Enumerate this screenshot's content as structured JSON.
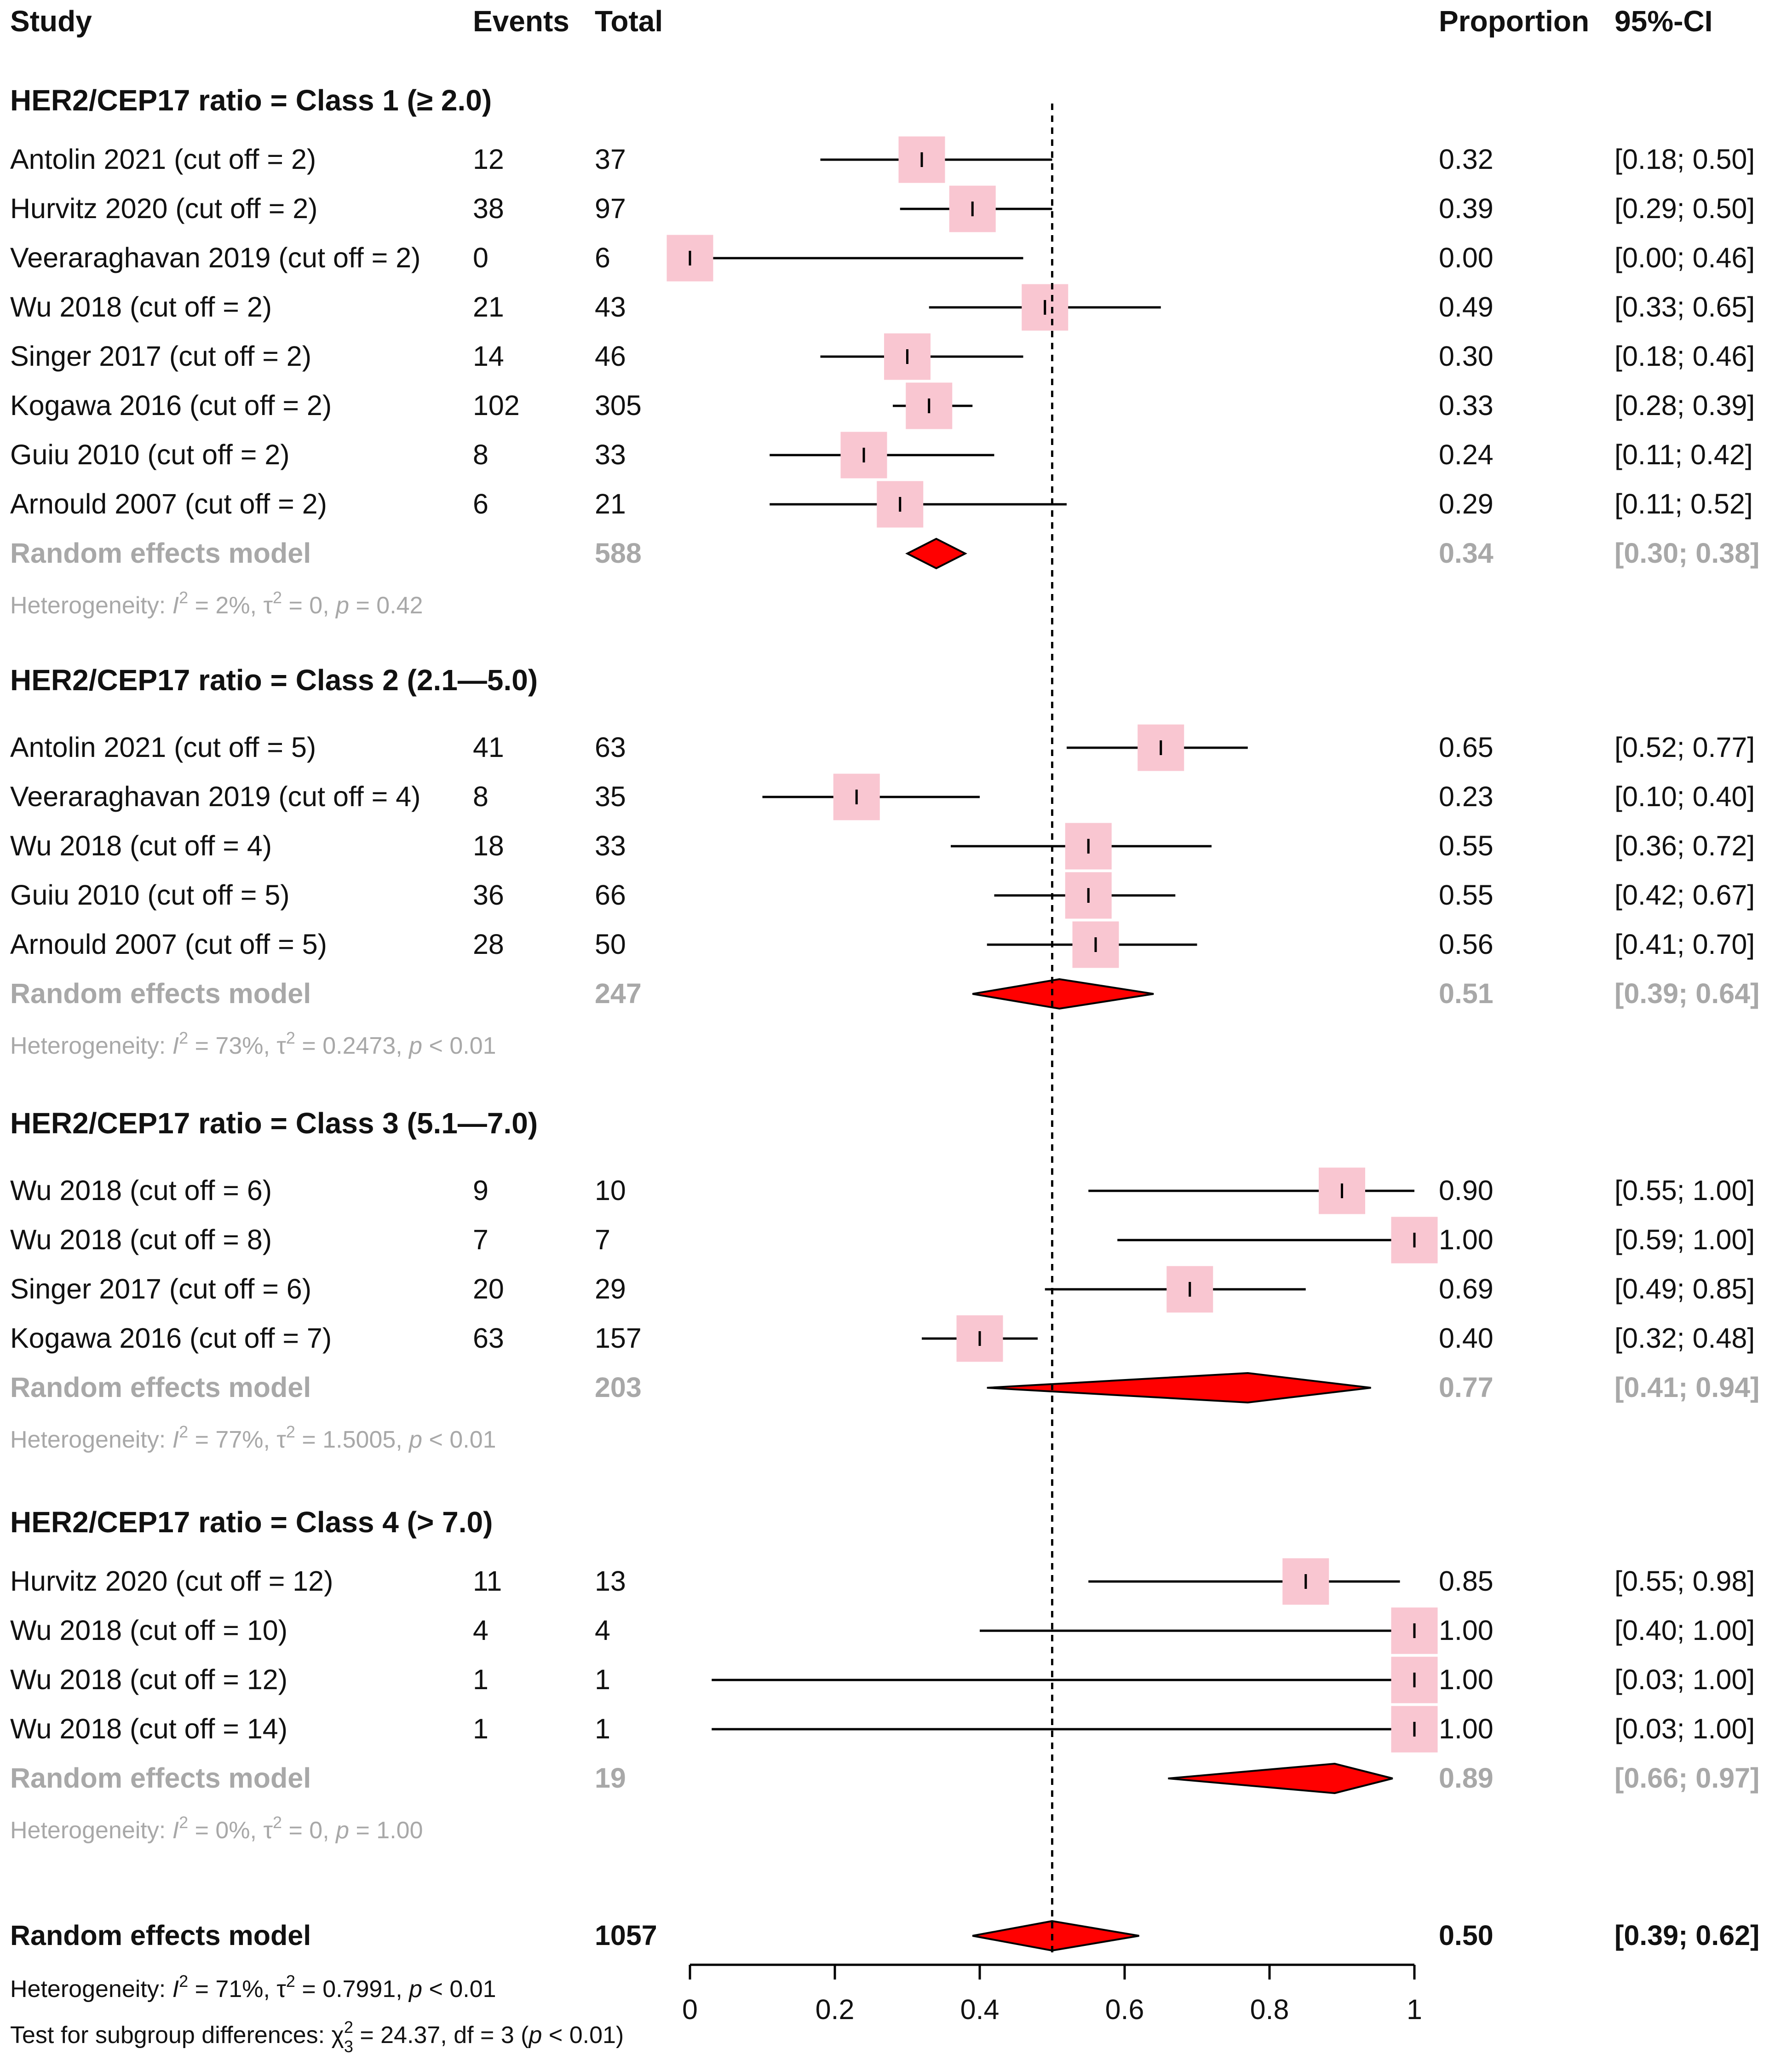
{
  "chart_data": {
    "type": "forest",
    "title": "",
    "xlim": [
      0,
      1
    ],
    "reference_line": 0.5,
    "x_ticks": [
      "0",
      "0.2",
      "0.4",
      "0.6",
      "0.8",
      "1"
    ],
    "x_tick_values": [
      0,
      0.2,
      0.4,
      0.6,
      0.8,
      1
    ],
    "headers": {
      "study": "Study",
      "events": "Events",
      "total": "Total",
      "proportion": "Proportion",
      "ci": "95%-CI"
    },
    "colors": {
      "box": "#f9c6d1",
      "diamond": "#ff0000",
      "grey": "#a8a8a8",
      "line": "#000000"
    },
    "groups": [
      {
        "label": "HER2/CEP17 ratio = Class 1 (≥ 2.0)",
        "studies": [
          {
            "study": "Antolin 2021 (cut off = 2)",
            "events": "12",
            "total": "37",
            "prop": 0.32,
            "lo": 0.18,
            "hi": 0.5,
            "prop_text": "0.32",
            "ci_text": "[0.18; 0.50]"
          },
          {
            "study": "Hurvitz 2020 (cut off = 2)",
            "events": "38",
            "total": "97",
            "prop": 0.39,
            "lo": 0.29,
            "hi": 0.5,
            "prop_text": "0.39",
            "ci_text": "[0.29; 0.50]"
          },
          {
            "study": "Veeraraghavan 2019 (cut off = 2)",
            "events": "0",
            "total": "6",
            "prop": 0.0,
            "lo": 0.0,
            "hi": 0.46,
            "prop_text": "0.00",
            "ci_text": "[0.00; 0.46]"
          },
          {
            "study": "Wu 2018 (cut off = 2)",
            "events": "21",
            "total": "43",
            "prop": 0.49,
            "lo": 0.33,
            "hi": 0.65,
            "prop_text": "0.49",
            "ci_text": "[0.33; 0.65]"
          },
          {
            "study": "Singer 2017 (cut off = 2)",
            "events": "14",
            "total": "46",
            "prop": 0.3,
            "lo": 0.18,
            "hi": 0.46,
            "prop_text": "0.30",
            "ci_text": "[0.18; 0.46]"
          },
          {
            "study": "Kogawa 2016 (cut off = 2)",
            "events": "102",
            "total": "305",
            "prop": 0.33,
            "lo": 0.28,
            "hi": 0.39,
            "prop_text": "0.33",
            "ci_text": "[0.28; 0.39]"
          },
          {
            "study": "Guiu 2010 (cut off = 2)",
            "events": "8",
            "total": "33",
            "prop": 0.24,
            "lo": 0.11,
            "hi": 0.42,
            "prop_text": "0.24",
            "ci_text": "[0.11; 0.42]"
          },
          {
            "study": "Arnould 2007 (cut off = 2)",
            "events": "6",
            "total": "21",
            "prop": 0.29,
            "lo": 0.11,
            "hi": 0.52,
            "prop_text": "0.29",
            "ci_text": "[0.11; 0.52]"
          }
        ],
        "model": {
          "label": "Random effects model",
          "total": "588",
          "est": 0.34,
          "lo": 0.3,
          "hi": 0.38,
          "prop_text": "0.34",
          "ci_text": "[0.30; 0.38]"
        },
        "heterogeneity": {
          "prefix": "Heterogeneity: ",
          "I2": "2%",
          "tau2": "0",
          "p": "= 0.42"
        }
      },
      {
        "label": "HER2/CEP17 ratio = Class 2 (2.1—5.0)",
        "studies": [
          {
            "study": "Antolin 2021 (cut off = 5)",
            "events": "41",
            "total": "63",
            "prop": 0.65,
            "lo": 0.52,
            "hi": 0.77,
            "prop_text": "0.65",
            "ci_text": "[0.52; 0.77]"
          },
          {
            "study": "Veeraraghavan 2019 (cut off = 4)",
            "events": "8",
            "total": "35",
            "prop": 0.23,
            "lo": 0.1,
            "hi": 0.4,
            "prop_text": "0.23",
            "ci_text": "[0.10; 0.40]"
          },
          {
            "study": "Wu 2018 (cut off = 4)",
            "events": "18",
            "total": "33",
            "prop": 0.55,
            "lo": 0.36,
            "hi": 0.72,
            "prop_text": "0.55",
            "ci_text": "[0.36; 0.72]"
          },
          {
            "study": "Guiu 2010 (cut off = 5)",
            "events": "36",
            "total": "66",
            "prop": 0.55,
            "lo": 0.42,
            "hi": 0.67,
            "prop_text": "0.55",
            "ci_text": "[0.42; 0.67]"
          },
          {
            "study": "Arnould 2007 (cut off = 5)",
            "events": "28",
            "total": "50",
            "prop": 0.56,
            "lo": 0.41,
            "hi": 0.7,
            "prop_text": "0.56",
            "ci_text": "[0.41; 0.70]"
          }
        ],
        "model": {
          "label": "Random effects model",
          "total": "247",
          "est": 0.51,
          "lo": 0.39,
          "hi": 0.64,
          "prop_text": "0.51",
          "ci_text": "[0.39; 0.64]"
        },
        "heterogeneity": {
          "prefix": "Heterogeneity: ",
          "I2": "73%",
          "tau2": "0.2473",
          "p": "< 0.01"
        }
      },
      {
        "label": "HER2/CEP17 ratio = Class 3 (5.1—7.0)",
        "studies": [
          {
            "study": "Wu 2018 (cut off = 6)",
            "events": "9",
            "total": "10",
            "prop": 0.9,
            "lo": 0.55,
            "hi": 1.0,
            "prop_text": "0.90",
            "ci_text": "[0.55; 1.00]"
          },
          {
            "study": "Wu 2018 (cut off = 8)",
            "events": "7",
            "total": "7",
            "prop": 1.0,
            "lo": 0.59,
            "hi": 1.0,
            "prop_text": "1.00",
            "ci_text": "[0.59; 1.00]"
          },
          {
            "study": "Singer 2017 (cut off = 6)",
            "events": "20",
            "total": "29",
            "prop": 0.69,
            "lo": 0.49,
            "hi": 0.85,
            "prop_text": "0.69",
            "ci_text": "[0.49; 0.85]"
          },
          {
            "study": "Kogawa 2016 (cut off = 7)",
            "events": "63",
            "total": "157",
            "prop": 0.4,
            "lo": 0.32,
            "hi": 0.48,
            "prop_text": "0.40",
            "ci_text": "[0.32; 0.48]"
          }
        ],
        "model": {
          "label": "Random effects model",
          "total": "203",
          "est": 0.77,
          "lo": 0.41,
          "hi": 0.94,
          "prop_text": "0.77",
          "ci_text": "[0.41; 0.94]"
        },
        "heterogeneity": {
          "prefix": "Heterogeneity: ",
          "I2": "77%",
          "tau2": "1.5005",
          "p": "< 0.01"
        }
      },
      {
        "label": "HER2/CEP17 ratio = Class 4 (> 7.0)",
        "studies": [
          {
            "study": "Hurvitz 2020 (cut off = 12)",
            "events": "11",
            "total": "13",
            "prop": 0.85,
            "lo": 0.55,
            "hi": 0.98,
            "prop_text": "0.85",
            "ci_text": "[0.55; 0.98]"
          },
          {
            "study": "Wu 2018 (cut off = 10)",
            "events": "4",
            "total": "4",
            "prop": 1.0,
            "lo": 0.4,
            "hi": 1.0,
            "prop_text": "1.00",
            "ci_text": "[0.40; 1.00]"
          },
          {
            "study": "Wu 2018 (cut off = 12)",
            "events": "1",
            "total": "1",
            "prop": 1.0,
            "lo": 0.03,
            "hi": 1.0,
            "prop_text": "1.00",
            "ci_text": "[0.03; 1.00]"
          },
          {
            "study": "Wu 2018 (cut off = 14)",
            "events": "1",
            "total": "1",
            "prop": 1.0,
            "lo": 0.03,
            "hi": 1.0,
            "prop_text": "1.00",
            "ci_text": "[0.03; 1.00]"
          }
        ],
        "model": {
          "label": "Random effects model",
          "total": "19",
          "est": 0.89,
          "lo": 0.66,
          "hi": 0.97,
          "prop_text": "0.89",
          "ci_text": "[0.66; 0.97]"
        },
        "heterogeneity": {
          "prefix": "Heterogeneity: ",
          "I2": "0%",
          "tau2": "0",
          "p": "= 1.00"
        }
      }
    ],
    "overall": {
      "label": "Random effects model",
      "total": "1057",
      "est": 0.5,
      "lo": 0.39,
      "hi": 0.62,
      "prop_text": "0.50",
      "ci_text": "[0.39; 0.62]",
      "heterogeneity": {
        "prefix": "Heterogeneity: ",
        "I2": "71%",
        "tau2": "0.7991",
        "p": "< 0.01"
      },
      "subgroup_test": {
        "prefix": "Test for subgroup differences: ",
        "chi_sub": "3",
        "chi_value": "= 24.37",
        "df": ", df = 3 (",
        "p": "< 0.01",
        "suffix": ")"
      }
    }
  }
}
